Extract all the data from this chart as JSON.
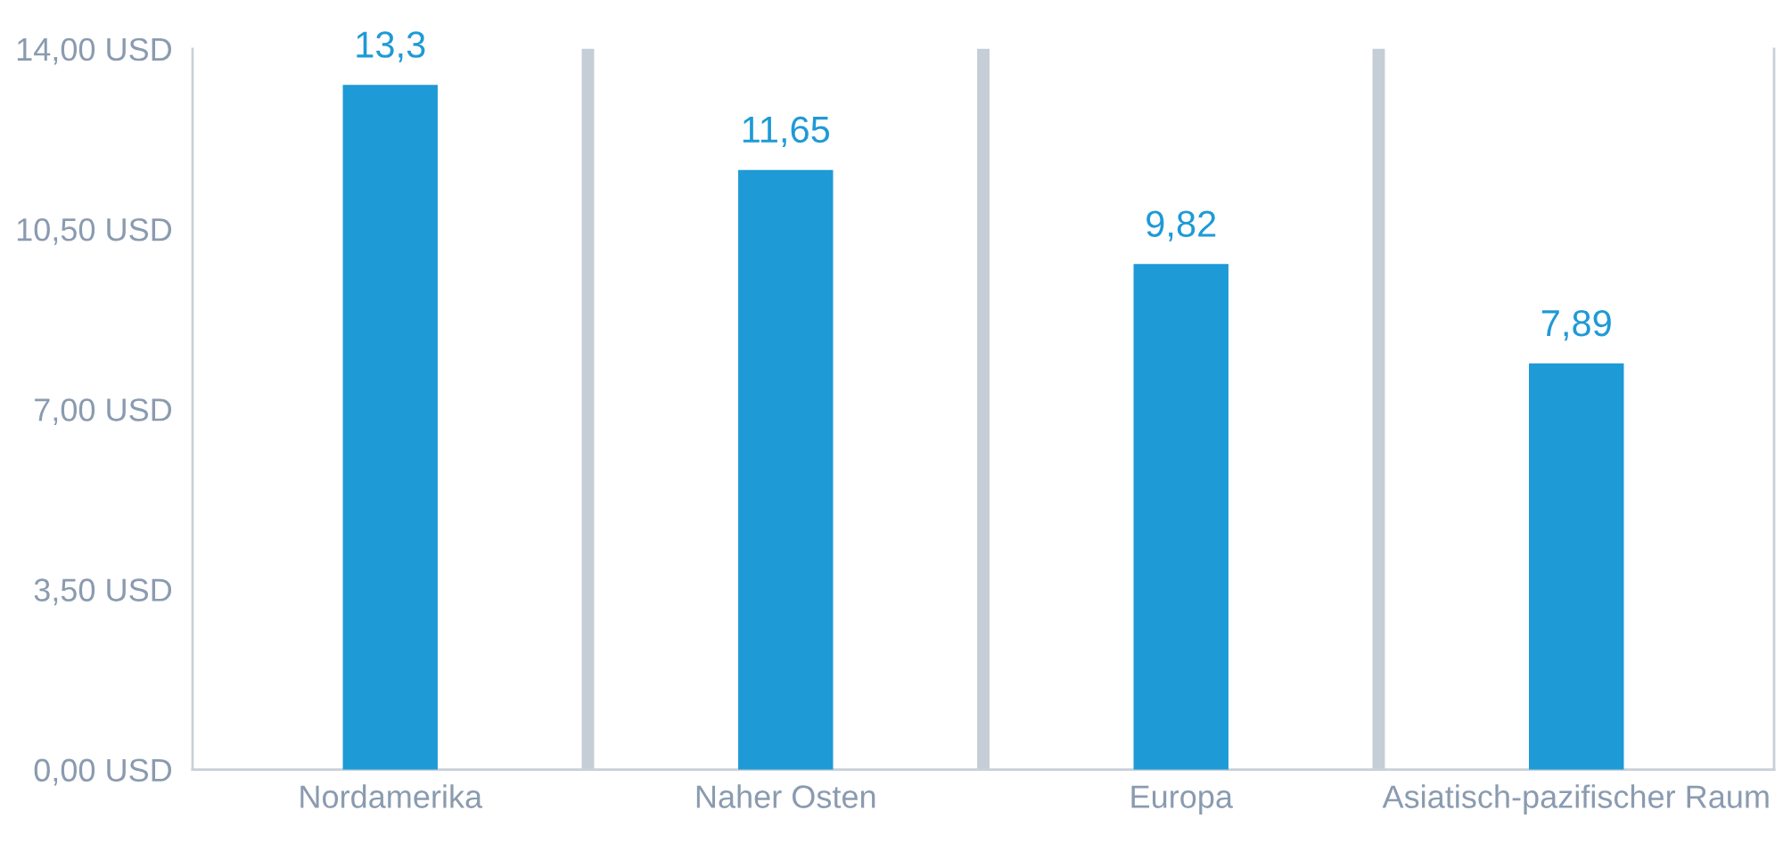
{
  "chart_data": {
    "type": "bar",
    "categories": [
      "Nordamerika",
      "Naher Osten",
      "Europa",
      "Asiatisch-pazifischer Raum"
    ],
    "values": [
      13.3,
      11.65,
      9.82,
      7.89
    ],
    "value_labels": [
      "13,3",
      "11,65",
      "9,82",
      "7,89"
    ],
    "color": "#1e9ad6",
    "ylim": [
      0,
      14
    ],
    "yticks": [
      {
        "value": 0,
        "label": "0,00 USD"
      },
      {
        "value": 3.5,
        "label": "3,50 USD"
      },
      {
        "value": 7,
        "label": "7,00 USD"
      },
      {
        "value": 10.5,
        "label": "10,50 USD"
      },
      {
        "value": 14,
        "label": "14,00 USD"
      }
    ],
    "grid": "x",
    "legend": false
  }
}
